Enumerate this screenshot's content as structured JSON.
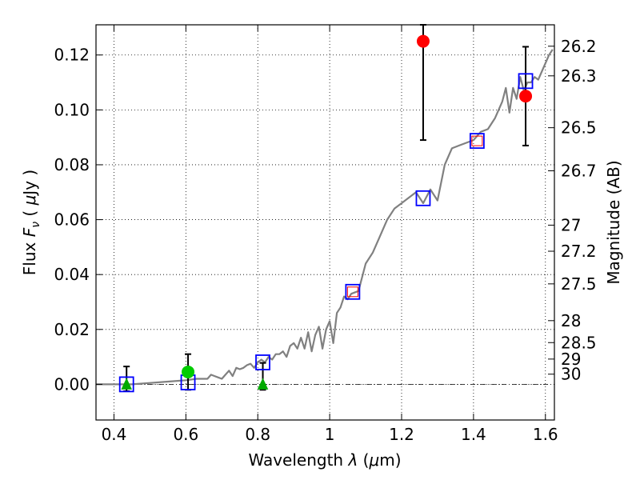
{
  "chart_data": {
    "type": "scatter",
    "title": "",
    "xlabel_parts": [
      "Wavelength  ",
      "λ",
      " (",
      "μ",
      "m)"
    ],
    "ylabel_parts": [
      "Flux  ",
      "F",
      "ν",
      "  (  ",
      "μ",
      "Jy  )"
    ],
    "right_ylabel": "Magnitude (AB)",
    "xlim": [
      0.35,
      1.625
    ],
    "ylim": [
      -0.013,
      0.131
    ],
    "grid": true,
    "xticks": [
      {
        "value": 0.4,
        "label": "0.4"
      },
      {
        "value": 0.6,
        "label": "0.6"
      },
      {
        "value": 0.8,
        "label": "0.8"
      },
      {
        "value": 1.0,
        "label": "1"
      },
      {
        "value": 1.2,
        "label": "1.2"
      },
      {
        "value": 1.4,
        "label": "1.4"
      },
      {
        "value": 1.6,
        "label": "1.6"
      }
    ],
    "yticks": [
      {
        "value": 0.0,
        "label": "0.00"
      },
      {
        "value": 0.02,
        "label": "0.02"
      },
      {
        "value": 0.04,
        "label": "0.04"
      },
      {
        "value": 0.06,
        "label": "0.06"
      },
      {
        "value": 0.08,
        "label": "0.08"
      },
      {
        "value": 0.1,
        "label": "0.10"
      },
      {
        "value": 0.12,
        "label": "0.12"
      }
    ],
    "right_ticks": [
      {
        "flux": 0.1232,
        "label": "26.2"
      },
      {
        "flux": 0.1124,
        "label": "26.3"
      },
      {
        "flux": 0.0935,
        "label": "26.5"
      },
      {
        "flux": 0.0778,
        "label": "26.7"
      },
      {
        "flux": 0.058,
        "label": "27"
      },
      {
        "flux": 0.0485,
        "label": "27.2"
      },
      {
        "flux": 0.0366,
        "label": "27.5"
      },
      {
        "flux": 0.0232,
        "label": "28"
      },
      {
        "flux": 0.0152,
        "label": "28.5"
      },
      {
        "flux": 0.0092,
        "label": "29"
      },
      {
        "flux": 0.0037,
        "label": "30"
      }
    ],
    "series": [
      {
        "name": "model spectrum",
        "kind": "line",
        "color": "#808080",
        "x": [
          0.35,
          0.45,
          0.5,
          0.55,
          0.6,
          0.63,
          0.66,
          0.67,
          0.68,
          0.69,
          0.7,
          0.71,
          0.72,
          0.73,
          0.74,
          0.75,
          0.76,
          0.77,
          0.78,
          0.79,
          0.8,
          0.81,
          0.82,
          0.83,
          0.84,
          0.85,
          0.86,
          0.87,
          0.88,
          0.89,
          0.9,
          0.91,
          0.92,
          0.93,
          0.94,
          0.95,
          0.96,
          0.97,
          0.98,
          0.99,
          1.0,
          1.01,
          1.02,
          1.03,
          1.04,
          1.05,
          1.06,
          1.08,
          1.1,
          1.12,
          1.14,
          1.16,
          1.18,
          1.2,
          1.22,
          1.24,
          1.26,
          1.28,
          1.3,
          1.32,
          1.34,
          1.36,
          1.38,
          1.4,
          1.42,
          1.44,
          1.46,
          1.48,
          1.49,
          1.5,
          1.51,
          1.52,
          1.53,
          1.54,
          1.55,
          1.56,
          1.57,
          1.58,
          1.59,
          1.6,
          1.61,
          1.62
        ],
        "y": [
          0.0,
          0.0,
          0.0005,
          0.001,
          0.0015,
          0.002,
          0.002,
          0.0035,
          0.003,
          0.0025,
          0.002,
          0.0035,
          0.005,
          0.003,
          0.006,
          0.0055,
          0.006,
          0.007,
          0.0075,
          0.006,
          0.008,
          0.009,
          0.008,
          0.01,
          0.009,
          0.011,
          0.011,
          0.012,
          0.01,
          0.014,
          0.015,
          0.013,
          0.017,
          0.013,
          0.019,
          0.012,
          0.018,
          0.021,
          0.013,
          0.02,
          0.023,
          0.015,
          0.026,
          0.028,
          0.032,
          0.031,
          0.033,
          0.034,
          0.044,
          0.048,
          0.054,
          0.06,
          0.064,
          0.066,
          0.068,
          0.07,
          0.066,
          0.071,
          0.067,
          0.08,
          0.086,
          0.087,
          0.088,
          0.089,
          0.092,
          0.093,
          0.097,
          0.103,
          0.108,
          0.099,
          0.108,
          0.104,
          0.112,
          0.107,
          0.11,
          0.11,
          0.112,
          0.111,
          0.114,
          0.117,
          0.12,
          0.122
        ]
      },
      {
        "name": "model photometry",
        "kind": "open-square",
        "color": "#0000ff",
        "x": [
          0.435,
          0.606,
          0.814,
          1.064,
          1.26,
          1.41,
          1.545
        ],
        "y": [
          0.0,
          0.0007,
          0.008,
          0.0337,
          0.0678,
          0.0887,
          0.1105
        ]
      },
      {
        "name": "small red squares",
        "kind": "open-square-small",
        "color": "#ff0000",
        "x": [
          1.064,
          1.41
        ],
        "y": [
          0.0337,
          0.0887
        ]
      },
      {
        "name": "upper limits",
        "kind": "triangle",
        "color": "#00aa00",
        "x": [
          0.435,
          0.814
        ],
        "y": [
          0.0,
          0.0
        ]
      },
      {
        "name": "green detection",
        "kind": "circle",
        "color": "#00cc00",
        "x": [
          0.606
        ],
        "y": [
          0.0045
        ]
      },
      {
        "name": "red detections",
        "kind": "circle",
        "color": "#ff0000",
        "x": [
          1.26,
          1.545
        ],
        "y": [
          0.125,
          0.105
        ]
      }
    ],
    "errorbars": [
      {
        "x": 0.435,
        "y": 0.0,
        "ylo": -0.0025,
        "yhi": 0.0065
      },
      {
        "x": 0.606,
        "y": 0.0045,
        "ylo": -0.002,
        "yhi": 0.011
      },
      {
        "x": 0.814,
        "y": 0.0,
        "ylo": -0.002,
        "yhi": 0.0078
      },
      {
        "x": 1.26,
        "y": 0.125,
        "ylo": 0.089,
        "yhi": 0.131
      },
      {
        "x": 1.545,
        "y": 0.105,
        "ylo": 0.087,
        "yhi": 0.123
      }
    ]
  }
}
